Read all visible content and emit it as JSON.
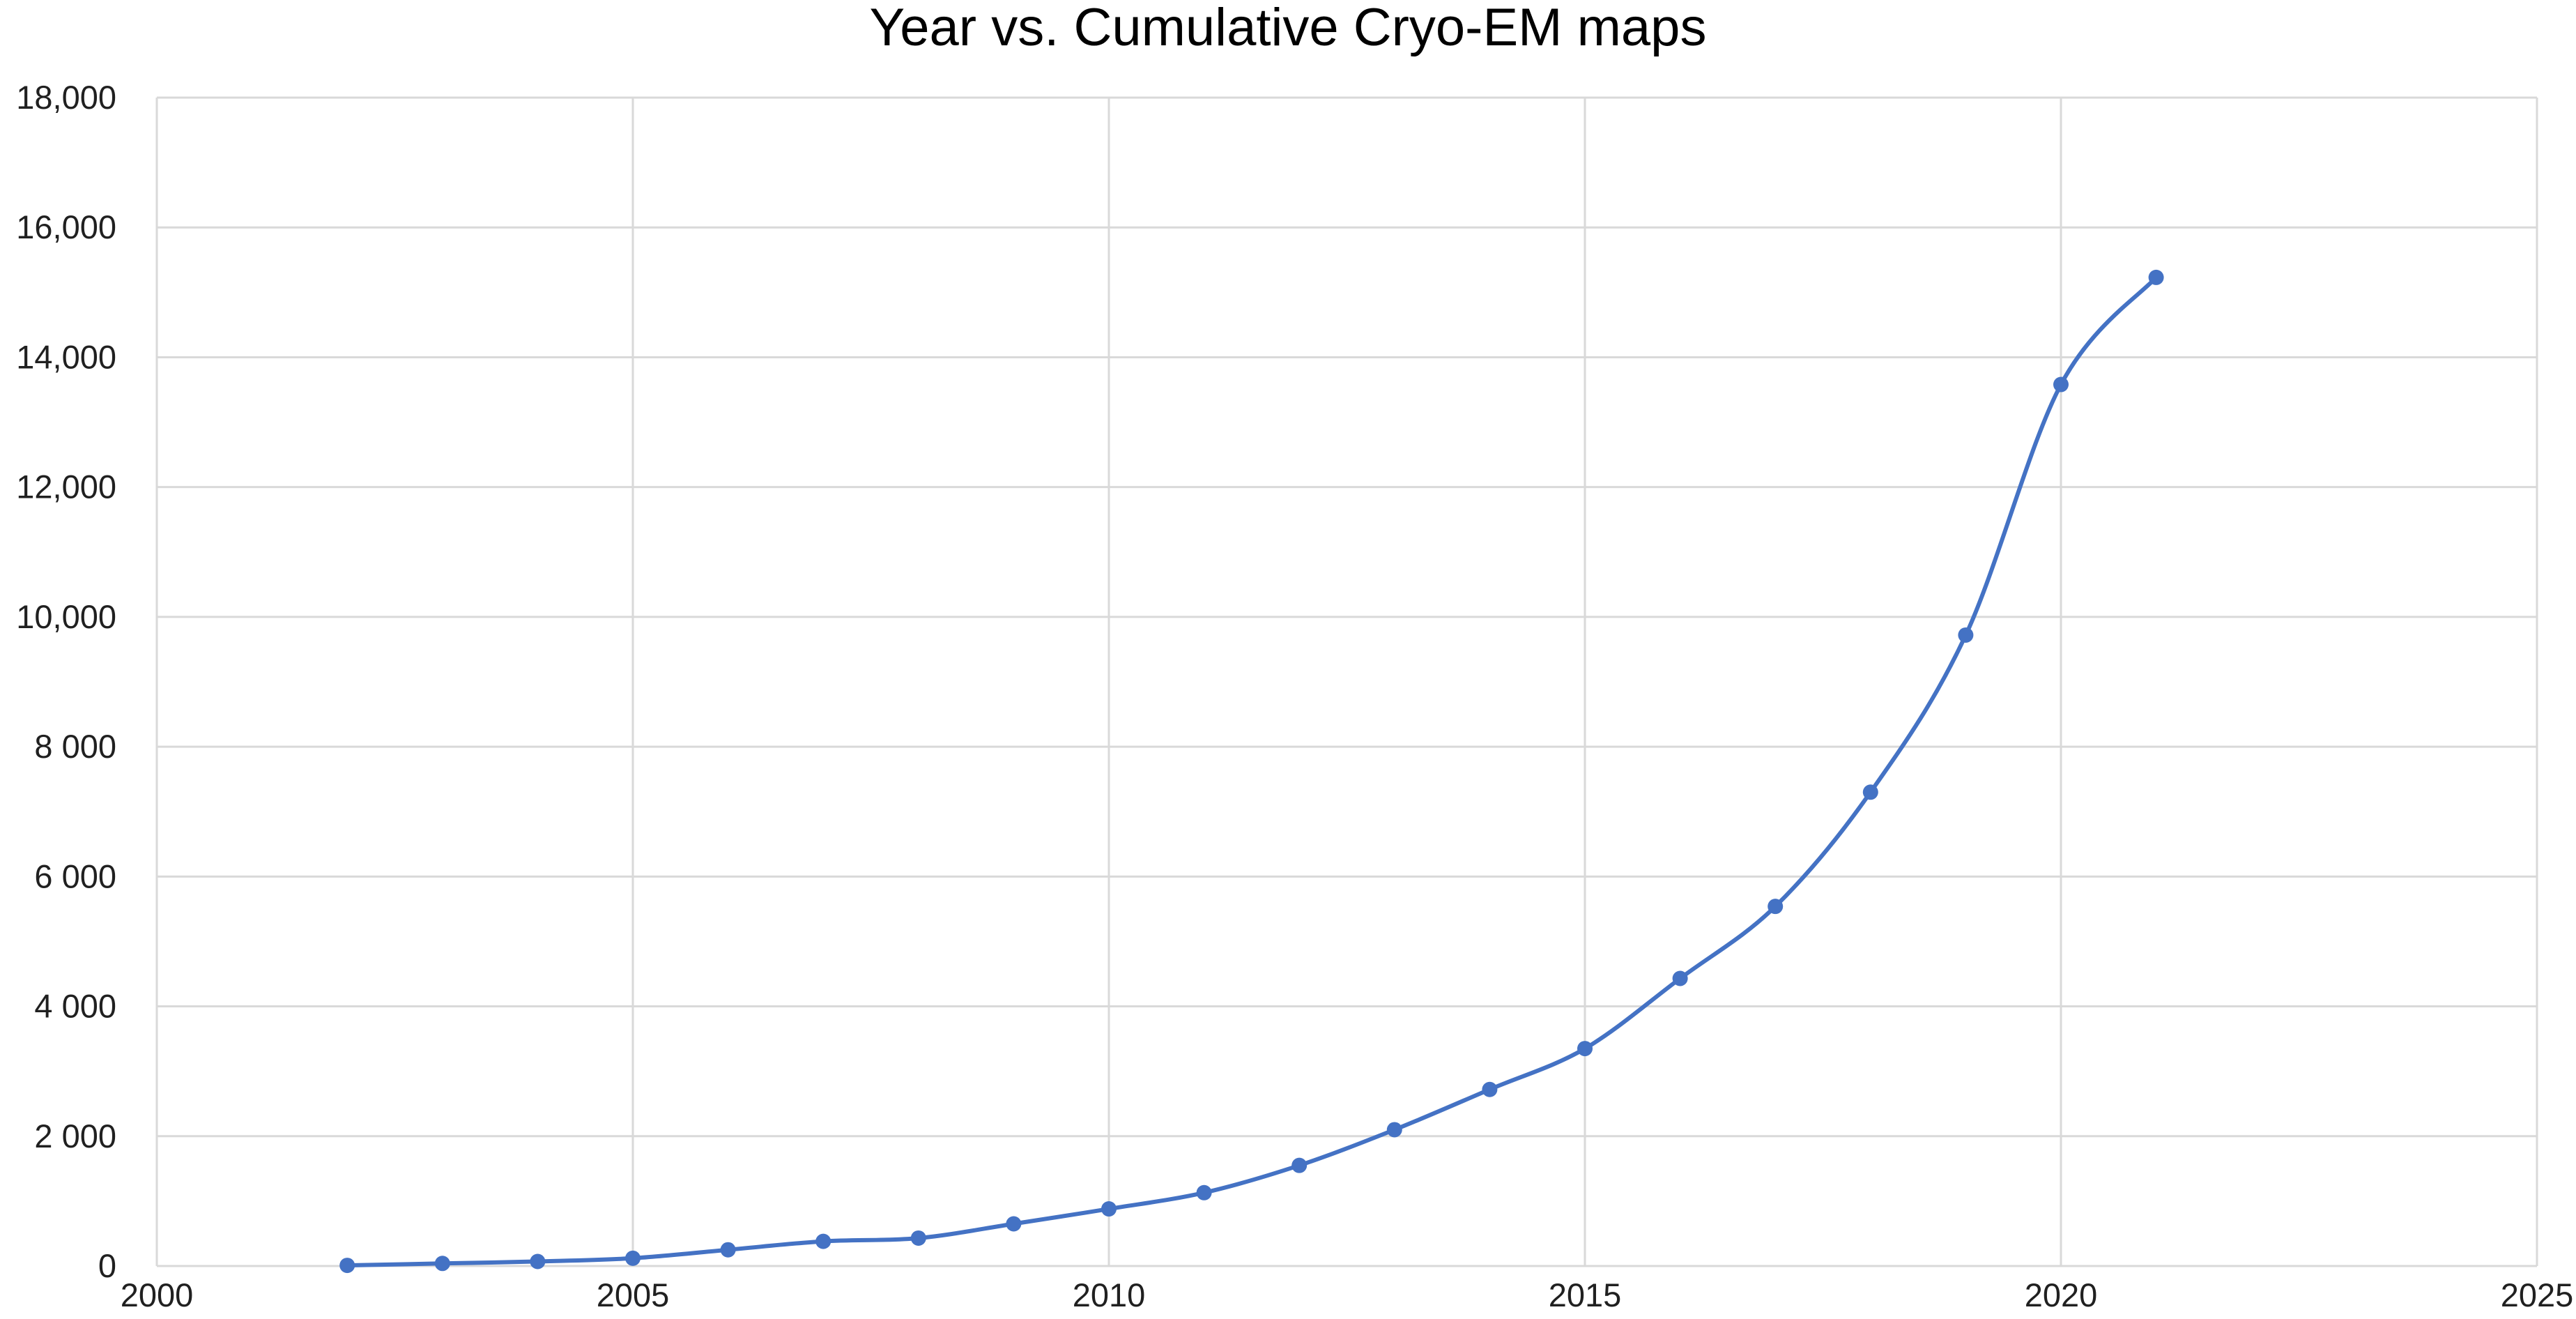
{
  "chart_data": {
    "type": "scatter",
    "title": "Year vs. Cumulative Cryo-EM maps",
    "xlabel": "",
    "ylabel": "",
    "xlim": [
      2000,
      2025
    ],
    "ylim": [
      0,
      18000
    ],
    "grid": true,
    "smooth_line": true,
    "series_color": "#4472c4",
    "x_ticks": [
      {
        "value": 2000,
        "label": "2000"
      },
      {
        "value": 2005,
        "label": "2005"
      },
      {
        "value": 2010,
        "label": "2010"
      },
      {
        "value": 2015,
        "label": "2015"
      },
      {
        "value": 2020,
        "label": "2020"
      },
      {
        "value": 2025,
        "label": "2025"
      }
    ],
    "y_ticks": [
      {
        "value": 0,
        "label": "0"
      },
      {
        "value": 2000,
        "label": "2 000"
      },
      {
        "value": 4000,
        "label": "4 000"
      },
      {
        "value": 6000,
        "label": "6 000"
      },
      {
        "value": 8000,
        "label": "8 000"
      },
      {
        "value": 10000,
        "label": "10,000"
      },
      {
        "value": 12000,
        "label": "12,000"
      },
      {
        "value": 14000,
        "label": "14,000"
      },
      {
        "value": 16000,
        "label": "16,000"
      },
      {
        "value": 18000,
        "label": "18,000"
      }
    ],
    "series": [
      {
        "x": [
          2002,
          2003,
          2004,
          2005,
          2006,
          2007,
          2008,
          2009,
          2010,
          2011,
          2012,
          2013,
          2014,
          2015,
          2016,
          2017,
          2018,
          2019,
          2020,
          2021
        ],
        "y": [
          10,
          40,
          70,
          120,
          250,
          380,
          430,
          650,
          880,
          1130,
          1550,
          2100,
          2720,
          3350,
          4430,
          5540,
          7300,
          9720,
          13580,
          15230
        ]
      }
    ]
  }
}
